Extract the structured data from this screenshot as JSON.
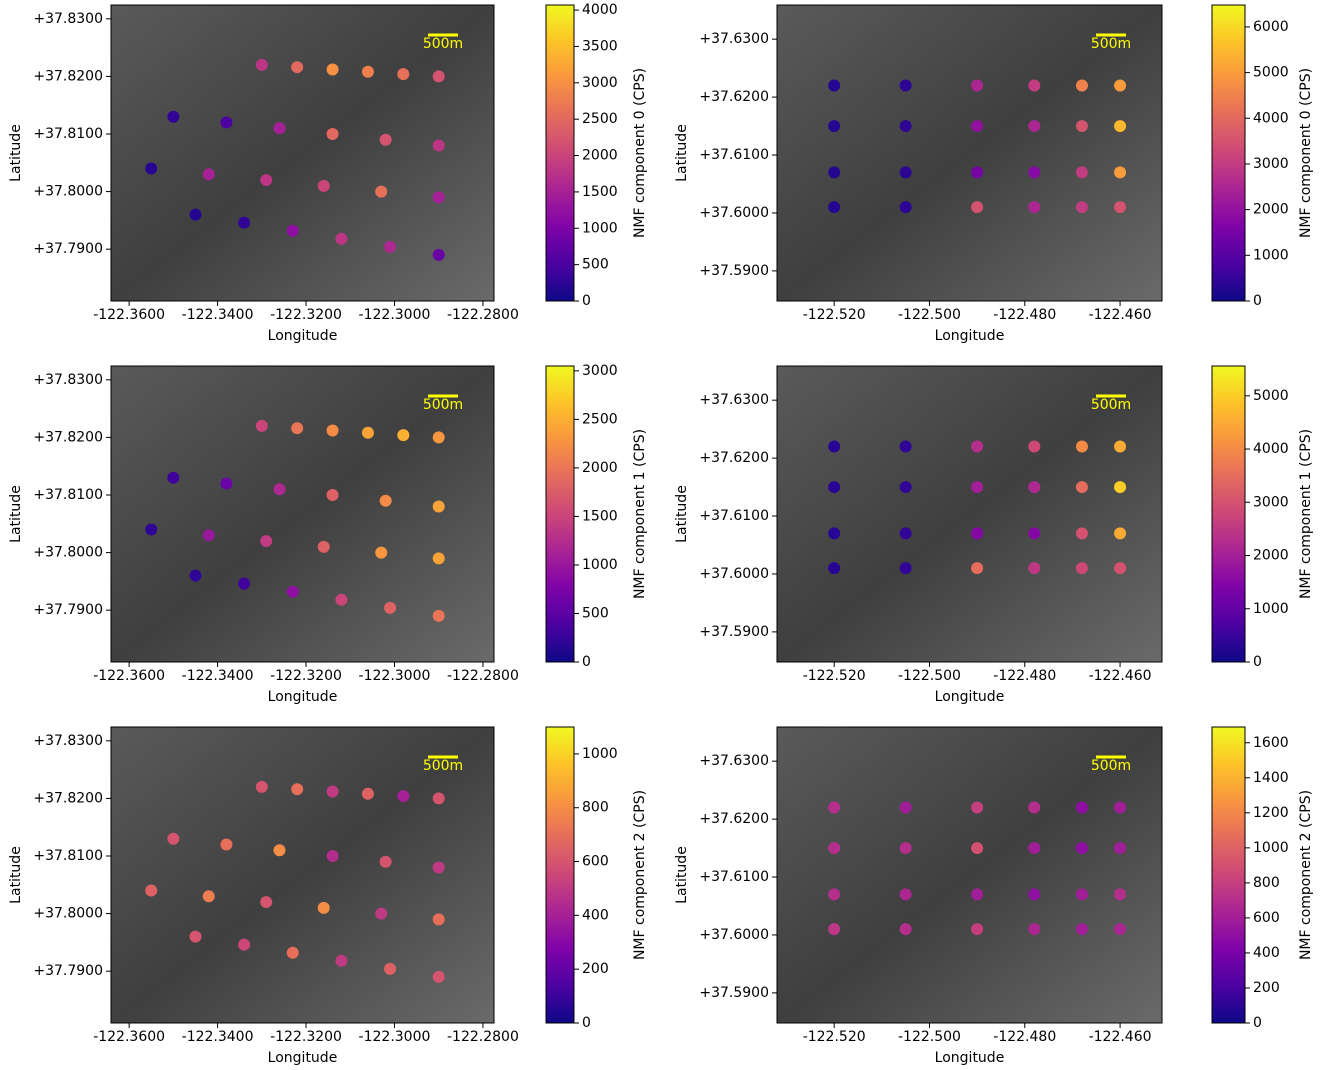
{
  "chart_data": [
    {
      "type": "scatter",
      "xlabel": "Longitude",
      "ylabel": "Latitude",
      "colorbar_label": "NMF component 0 (CPS)",
      "annotation": "500m",
      "colormap": "plasma",
      "xlim": [
        -122.3641,
        -122.2775
      ],
      "ylim": [
        37.781,
        37.8324
      ],
      "xticks": [
        {
          "value": -122.36,
          "label": "-122.3600"
        },
        {
          "value": -122.34,
          "label": "-122.3400"
        },
        {
          "value": -122.32,
          "label": "-122.3200"
        },
        {
          "value": -122.3,
          "label": "-122.3000"
        },
        {
          "value": -122.28,
          "label": "-122.2800"
        }
      ],
      "yticks": [
        {
          "value": 37.79,
          "label": "+37.7900"
        },
        {
          "value": 37.8,
          "label": "+37.8000"
        },
        {
          "value": 37.81,
          "label": "+37.8100"
        },
        {
          "value": 37.82,
          "label": "+37.8200"
        },
        {
          "value": 37.83,
          "label": "+37.8300"
        }
      ],
      "clim": [
        0,
        4070
      ],
      "cticks": [
        0,
        500,
        1000,
        1500,
        2000,
        2500,
        3000,
        3500,
        4000
      ],
      "x": [
        -122.33,
        -122.322,
        -122.314,
        -122.306,
        -122.298,
        -122.29,
        -122.35,
        -122.338,
        -122.326,
        -122.314,
        -122.302,
        -122.29,
        -122.355,
        -122.342,
        -122.329,
        -122.316,
        -122.303,
        -122.29,
        -122.345,
        -122.334,
        -122.323,
        -122.312,
        -122.301,
        -122.29
      ],
      "y": [
        37.822,
        37.8216,
        37.8212,
        37.8208,
        37.8204,
        37.82,
        37.813,
        37.812,
        37.811,
        37.81,
        37.809,
        37.808,
        37.804,
        37.803,
        37.802,
        37.801,
        37.8,
        37.799,
        37.796,
        37.7946,
        37.7932,
        37.7918,
        37.7904,
        37.789
      ],
      "values": [
        1800,
        2500,
        3000,
        2800,
        2600,
        2200,
        300,
        500,
        1500,
        2500,
        2200,
        1800,
        200,
        1500,
        1800,
        2000,
        2600,
        1500,
        200,
        300,
        1200,
        1800,
        1600,
        800
      ]
    },
    {
      "type": "scatter",
      "xlabel": "Longitude",
      "ylabel": "Latitude",
      "colorbar_label": "NMF component 0 (CPS)",
      "annotation": "500m",
      "colormap": "plasma",
      "xlim": [
        -122.532,
        -122.4512
      ],
      "ylim": [
        37.5848,
        37.6359
      ],
      "xticks": [
        {
          "value": -122.52,
          "label": "-122.520"
        },
        {
          "value": -122.5,
          "label": "-122.500"
        },
        {
          "value": -122.48,
          "label": "-122.480"
        },
        {
          "value": -122.46,
          "label": "-122.460"
        }
      ],
      "yticks": [
        {
          "value": 37.59,
          "label": "+37.5900"
        },
        {
          "value": 37.6,
          "label": "+37.6000"
        },
        {
          "value": 37.61,
          "label": "+37.6100"
        },
        {
          "value": 37.62,
          "label": "+37.6200"
        },
        {
          "value": 37.63,
          "label": "+37.6300"
        }
      ],
      "clim": [
        0,
        6480
      ],
      "cticks": [
        0,
        1000,
        2000,
        3000,
        4000,
        5000,
        6000
      ],
      "x": [
        -122.52,
        -122.505,
        -122.49,
        -122.478,
        -122.468,
        -122.46,
        -122.52,
        -122.505,
        -122.49,
        -122.478,
        -122.468,
        -122.46,
        -122.52,
        -122.505,
        -122.49,
        -122.478,
        -122.468,
        -122.46,
        -122.52,
        -122.505,
        -122.49,
        -122.478,
        -122.468,
        -122.46
      ],
      "y": [
        37.622,
        37.622,
        37.622,
        37.622,
        37.622,
        37.622,
        37.615,
        37.615,
        37.615,
        37.615,
        37.615,
        37.615,
        37.607,
        37.607,
        37.607,
        37.607,
        37.607,
        37.607,
        37.601,
        37.601,
        37.601,
        37.601,
        37.601,
        37.601
      ],
      "values": [
        300,
        400,
        2500,
        3000,
        4500,
        5000,
        300,
        400,
        2000,
        2500,
        3500,
        5500,
        300,
        400,
        1500,
        1800,
        3000,
        5000,
        300,
        400,
        3500,
        2500,
        3000,
        3500
      ]
    },
    {
      "type": "scatter",
      "xlabel": "Longitude",
      "ylabel": "Latitude",
      "colorbar_label": "NMF component 1 (CPS)",
      "annotation": "500m",
      "colormap": "plasma",
      "xlim": [
        -122.3641,
        -122.2775
      ],
      "ylim": [
        37.781,
        37.8324
      ],
      "xticks": [
        {
          "value": -122.36,
          "label": "-122.3600"
        },
        {
          "value": -122.34,
          "label": "-122.3400"
        },
        {
          "value": -122.32,
          "label": "-122.3200"
        },
        {
          "value": -122.3,
          "label": "-122.3000"
        },
        {
          "value": -122.28,
          "label": "-122.2800"
        }
      ],
      "yticks": [
        {
          "value": 37.79,
          "label": "+37.7900"
        },
        {
          "value": 37.8,
          "label": "+37.8000"
        },
        {
          "value": 37.81,
          "label": "+37.8100"
        },
        {
          "value": 37.82,
          "label": "+37.8200"
        },
        {
          "value": 37.83,
          "label": "+37.8300"
        }
      ],
      "clim": [
        0,
        3050
      ],
      "cticks": [
        0,
        500,
        1000,
        1500,
        2000,
        2500,
        3000
      ],
      "x": [
        -122.33,
        -122.322,
        -122.314,
        -122.306,
        -122.298,
        -122.29,
        -122.35,
        -122.338,
        -122.326,
        -122.314,
        -122.302,
        -122.29,
        -122.355,
        -122.342,
        -122.329,
        -122.316,
        -122.303,
        -122.29,
        -122.345,
        -122.334,
        -122.323,
        -122.312,
        -122.301,
        -122.29
      ],
      "y": [
        37.822,
        37.8216,
        37.8212,
        37.8208,
        37.8204,
        37.82,
        37.813,
        37.812,
        37.811,
        37.81,
        37.809,
        37.808,
        37.804,
        37.803,
        37.802,
        37.801,
        37.8,
        37.799,
        37.796,
        37.7946,
        37.7932,
        37.7918,
        37.7904,
        37.789
      ],
      "values": [
        1500,
        2000,
        2200,
        2400,
        2500,
        2300,
        300,
        600,
        1200,
        1800,
        2200,
        2400,
        200,
        1000,
        1400,
        1800,
        2300,
        2400,
        200,
        300,
        900,
        1500,
        1800,
        2000
      ]
    },
    {
      "type": "scatter",
      "xlabel": "Longitude",
      "ylabel": "Latitude",
      "colorbar_label": "NMF component 1 (CPS)",
      "annotation": "500m",
      "colormap": "plasma",
      "xlim": [
        -122.532,
        -122.4512
      ],
      "ylim": [
        37.5848,
        37.6359
      ],
      "xticks": [
        {
          "value": -122.52,
          "label": "-122.520"
        },
        {
          "value": -122.5,
          "label": "-122.500"
        },
        {
          "value": -122.48,
          "label": "-122.480"
        },
        {
          "value": -122.46,
          "label": "-122.460"
        }
      ],
      "yticks": [
        {
          "value": 37.59,
          "label": "+37.5900"
        },
        {
          "value": 37.6,
          "label": "+37.6000"
        },
        {
          "value": 37.61,
          "label": "+37.6100"
        },
        {
          "value": 37.62,
          "label": "+37.6200"
        },
        {
          "value": 37.63,
          "label": "+37.6300"
        }
      ],
      "clim": [
        0,
        5560
      ],
      "cticks": [
        0,
        1000,
        2000,
        3000,
        4000,
        5000
      ],
      "x": [
        -122.52,
        -122.505,
        -122.49,
        -122.478,
        -122.468,
        -122.46,
        -122.52,
        -122.505,
        -122.49,
        -122.478,
        -122.468,
        -122.46,
        -122.52,
        -122.505,
        -122.49,
        -122.478,
        -122.468,
        -122.46,
        -122.52,
        -122.505,
        -122.49,
        -122.478,
        -122.468,
        -122.46
      ],
      "y": [
        37.622,
        37.622,
        37.622,
        37.622,
        37.622,
        37.622,
        37.615,
        37.615,
        37.615,
        37.615,
        37.615,
        37.615,
        37.607,
        37.607,
        37.607,
        37.607,
        37.607,
        37.607,
        37.601,
        37.601,
        37.601,
        37.601,
        37.601,
        37.601
      ],
      "values": [
        300,
        400,
        2300,
        2800,
        4000,
        4500,
        300,
        400,
        2000,
        2200,
        3500,
        5000,
        300,
        400,
        1500,
        1500,
        3000,
        4500,
        300,
        400,
        3500,
        2500,
        2800,
        3000
      ]
    },
    {
      "type": "scatter",
      "xlabel": "Longitude",
      "ylabel": "Latitude",
      "colorbar_label": "NMF component 2 (CPS)",
      "annotation": "500m",
      "colormap": "plasma",
      "xlim": [
        -122.3641,
        -122.2775
      ],
      "ylim": [
        37.781,
        37.8324
      ],
      "xticks": [
        {
          "value": -122.36,
          "label": "-122.3600"
        },
        {
          "value": -122.34,
          "label": "-122.3400"
        },
        {
          "value": -122.32,
          "label": "-122.3200"
        },
        {
          "value": -122.3,
          "label": "-122.3000"
        },
        {
          "value": -122.28,
          "label": "-122.2800"
        }
      ],
      "yticks": [
        {
          "value": 37.79,
          "label": "+37.7900"
        },
        {
          "value": 37.8,
          "label": "+37.8000"
        },
        {
          "value": 37.81,
          "label": "+37.8100"
        },
        {
          "value": 37.82,
          "label": "+37.8200"
        },
        {
          "value": 37.83,
          "label": "+37.8300"
        }
      ],
      "clim": [
        0,
        1100
      ],
      "cticks": [
        0,
        200,
        400,
        600,
        800,
        1000
      ],
      "x": [
        -122.33,
        -122.322,
        -122.314,
        -122.306,
        -122.298,
        -122.29,
        -122.35,
        -122.338,
        -122.326,
        -122.314,
        -122.302,
        -122.29,
        -122.355,
        -122.342,
        -122.329,
        -122.316,
        -122.303,
        -122.29,
        -122.345,
        -122.334,
        -122.323,
        -122.312,
        -122.301,
        -122.29
      ],
      "y": [
        37.822,
        37.8216,
        37.8212,
        37.8208,
        37.8204,
        37.82,
        37.813,
        37.812,
        37.811,
        37.81,
        37.809,
        37.808,
        37.804,
        37.803,
        37.802,
        37.801,
        37.8,
        37.799,
        37.796,
        37.7946,
        37.7932,
        37.7918,
        37.7904,
        37.789
      ],
      "values": [
        600,
        700,
        500,
        650,
        400,
        600,
        600,
        700,
        800,
        450,
        600,
        500,
        650,
        750,
        600,
        800,
        500,
        700,
        600,
        550,
        700,
        500,
        650,
        600
      ]
    },
    {
      "type": "scatter",
      "xlabel": "Longitude",
      "ylabel": "Latitude",
      "colorbar_label": "NMF component 2 (CPS)",
      "annotation": "500m",
      "colormap": "plasma",
      "xlim": [
        -122.532,
        -122.4512
      ],
      "ylim": [
        37.5848,
        37.6359
      ],
      "xticks": [
        {
          "value": -122.52,
          "label": "-122.520"
        },
        {
          "value": -122.5,
          "label": "-122.500"
        },
        {
          "value": -122.48,
          "label": "-122.480"
        },
        {
          "value": -122.46,
          "label": "-122.460"
        }
      ],
      "yticks": [
        {
          "value": 37.59,
          "label": "+37.5900"
        },
        {
          "value": 37.6,
          "label": "+37.6000"
        },
        {
          "value": 37.61,
          "label": "+37.6100"
        },
        {
          "value": 37.62,
          "label": "+37.6200"
        },
        {
          "value": 37.63,
          "label": "+37.6300"
        }
      ],
      "clim": [
        0,
        1690
      ],
      "cticks": [
        0,
        200,
        400,
        600,
        800,
        1000,
        1200,
        1400,
        1600
      ],
      "x": [
        -122.52,
        -122.505,
        -122.49,
        -122.478,
        -122.468,
        -122.46,
        -122.52,
        -122.505,
        -122.49,
        -122.478,
        -122.468,
        -122.46,
        -122.52,
        -122.505,
        -122.49,
        -122.478,
        -122.468,
        -122.46,
        -122.52,
        -122.505,
        -122.49,
        -122.478,
        -122.468,
        -122.46
      ],
      "y": [
        37.622,
        37.622,
        37.622,
        37.622,
        37.622,
        37.622,
        37.615,
        37.615,
        37.615,
        37.615,
        37.615,
        37.615,
        37.607,
        37.607,
        37.607,
        37.607,
        37.607,
        37.607,
        37.601,
        37.601,
        37.601,
        37.601,
        37.601,
        37.601
      ],
      "values": [
        700,
        600,
        800,
        700,
        500,
        600,
        700,
        700,
        900,
        600,
        500,
        600,
        700,
        650,
        600,
        500,
        600,
        700,
        750,
        700,
        800,
        650,
        600,
        650
      ]
    }
  ]
}
